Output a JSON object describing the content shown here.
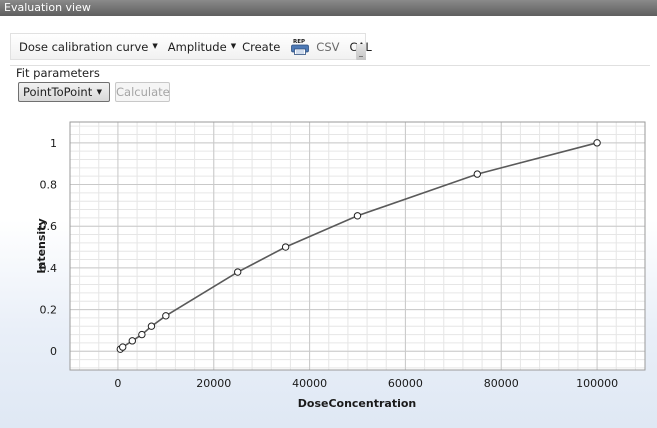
{
  "window": {
    "title": "Evaluation view"
  },
  "toolbar": {
    "curve_dropdown": "Dose calibration curve",
    "amplitude_dropdown": "Amplitude",
    "create_label": "Create",
    "report_icon_text": "REP",
    "csv_label": "CSV",
    "cal_label": "CAL"
  },
  "fit": {
    "label": "Fit parameters",
    "method_value": "PointToPoint",
    "calculate_label": "Calculate"
  },
  "chart_data": {
    "type": "line",
    "xlabel": "DoseConcentration",
    "ylabel": "Intensity",
    "xlim": [
      -10000,
      110000
    ],
    "ylim": [
      -0.09,
      1.1
    ],
    "x_ticks": [
      0,
      20000,
      40000,
      60000,
      80000,
      100000
    ],
    "y_ticks": [
      0,
      0.2,
      0.4,
      0.6,
      0.8,
      1
    ],
    "x_tick_labels": [
      "0",
      "20000",
      "40000",
      "60000",
      "80000",
      "100000"
    ],
    "y_tick_labels": [
      "0",
      "0.2",
      "0.4",
      "0.6",
      "0.8",
      "1"
    ],
    "grid": true,
    "series": [
      {
        "x": [
          500,
          1000,
          3000,
          5000,
          7000,
          10000,
          25000,
          35000,
          50000,
          75000,
          100000
        ],
        "y": [
          0.01,
          0.02,
          0.05,
          0.08,
          0.12,
          0.17,
          0.38,
          0.5,
          0.65,
          0.85,
          1.0
        ]
      }
    ],
    "colors": {
      "line": "#5a5a5a",
      "marker_fill": "#ffffff",
      "marker_stroke": "#222222",
      "grid_major": "#c9c9c9",
      "grid_minor": "#e6e6e6"
    }
  }
}
